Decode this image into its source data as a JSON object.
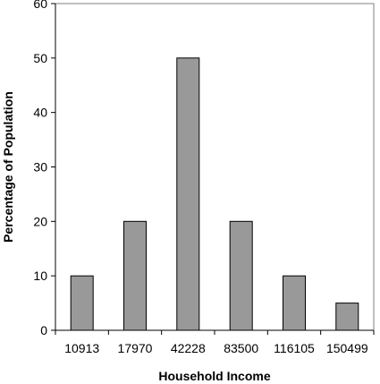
{
  "chart_data": {
    "type": "bar",
    "title": "",
    "xlabel": "Household Income",
    "ylabel": "Percentage of Population",
    "categories": [
      "10913",
      "17970",
      "42228",
      "83500",
      "116105",
      "150499"
    ],
    "values": [
      10,
      20,
      50,
      20,
      10,
      5
    ],
    "ylim": [
      0,
      60
    ],
    "yticks": [
      0,
      10,
      20,
      30,
      40,
      50,
      60
    ],
    "grid": false,
    "legend": "none",
    "colors": {
      "bar_fill": "#999999",
      "bar_stroke": "#000000",
      "axis": "#000000",
      "frame": "#808080",
      "background": "#ffffff"
    }
  }
}
